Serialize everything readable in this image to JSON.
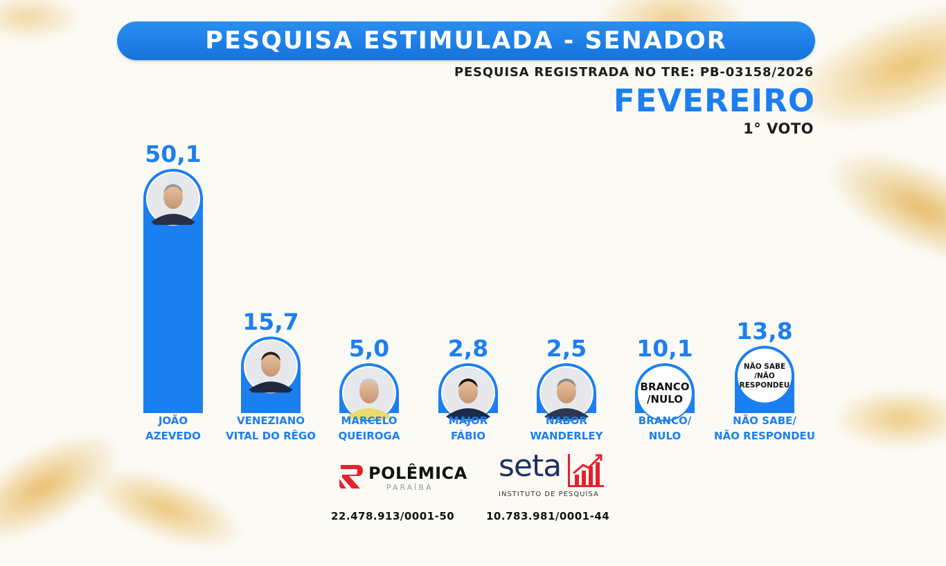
{
  "header": {
    "title": "PESQUISA ESTIMULADA - SENADOR",
    "registration": "PESQUISA REGISTRADA NO TRE: PB-03158/2026",
    "month": "FEVEREIRO",
    "vote_round": "1° VOTO"
  },
  "colors": {
    "accent": "#1c7ff0",
    "bar": "#1c7ff0",
    "banner": "#1673dd"
  },
  "chart_data": {
    "type": "bar",
    "title": "PESQUISA ESTIMULADA - SENADOR",
    "categories": [
      [
        "JOÃO",
        "AZEVEDO"
      ],
      [
        "VENEZIANO",
        "VITAL DO RÊGO"
      ],
      [
        "MARCELO",
        "QUEIROGA"
      ],
      [
        "MAJOR",
        "FÁBIO"
      ],
      [
        "NABOR",
        "WANDERLEY"
      ],
      [
        "BRANCO/",
        "NULO"
      ],
      [
        "NÃO SABE/",
        "NÃO RESPONDEU"
      ]
    ],
    "values": [
      50.1,
      15.7,
      5.0,
      2.8,
      2.5,
      10.1,
      13.8
    ],
    "value_labels": [
      "50,1",
      "15,7",
      "5,0",
      "2,8",
      "2,5",
      "10,1",
      "13,8"
    ],
    "circle_labels": [
      [],
      [],
      [],
      [],
      [],
      [
        "BRANCO",
        "/NULO"
      ],
      [
        "NÃO SABE",
        "/NÃO",
        "RESPONDEU"
      ]
    ],
    "circle_content": [
      "photo",
      "photo",
      "photo",
      "photo",
      "photo",
      "text",
      "text"
    ],
    "xlabel": "",
    "ylabel": "",
    "ylim": [
      0,
      50.1
    ]
  },
  "footer": {
    "polemica_logo_text": "POLÊMICA",
    "polemica_logo_sub": "PARAÍBA",
    "polemica_cnpj": "22.478.913/0001-50",
    "seta_logo_text": "seta",
    "seta_logo_sub": "INSTITUTO DE PESQUISA",
    "seta_cnpj": "10.783.981/0001-44"
  }
}
